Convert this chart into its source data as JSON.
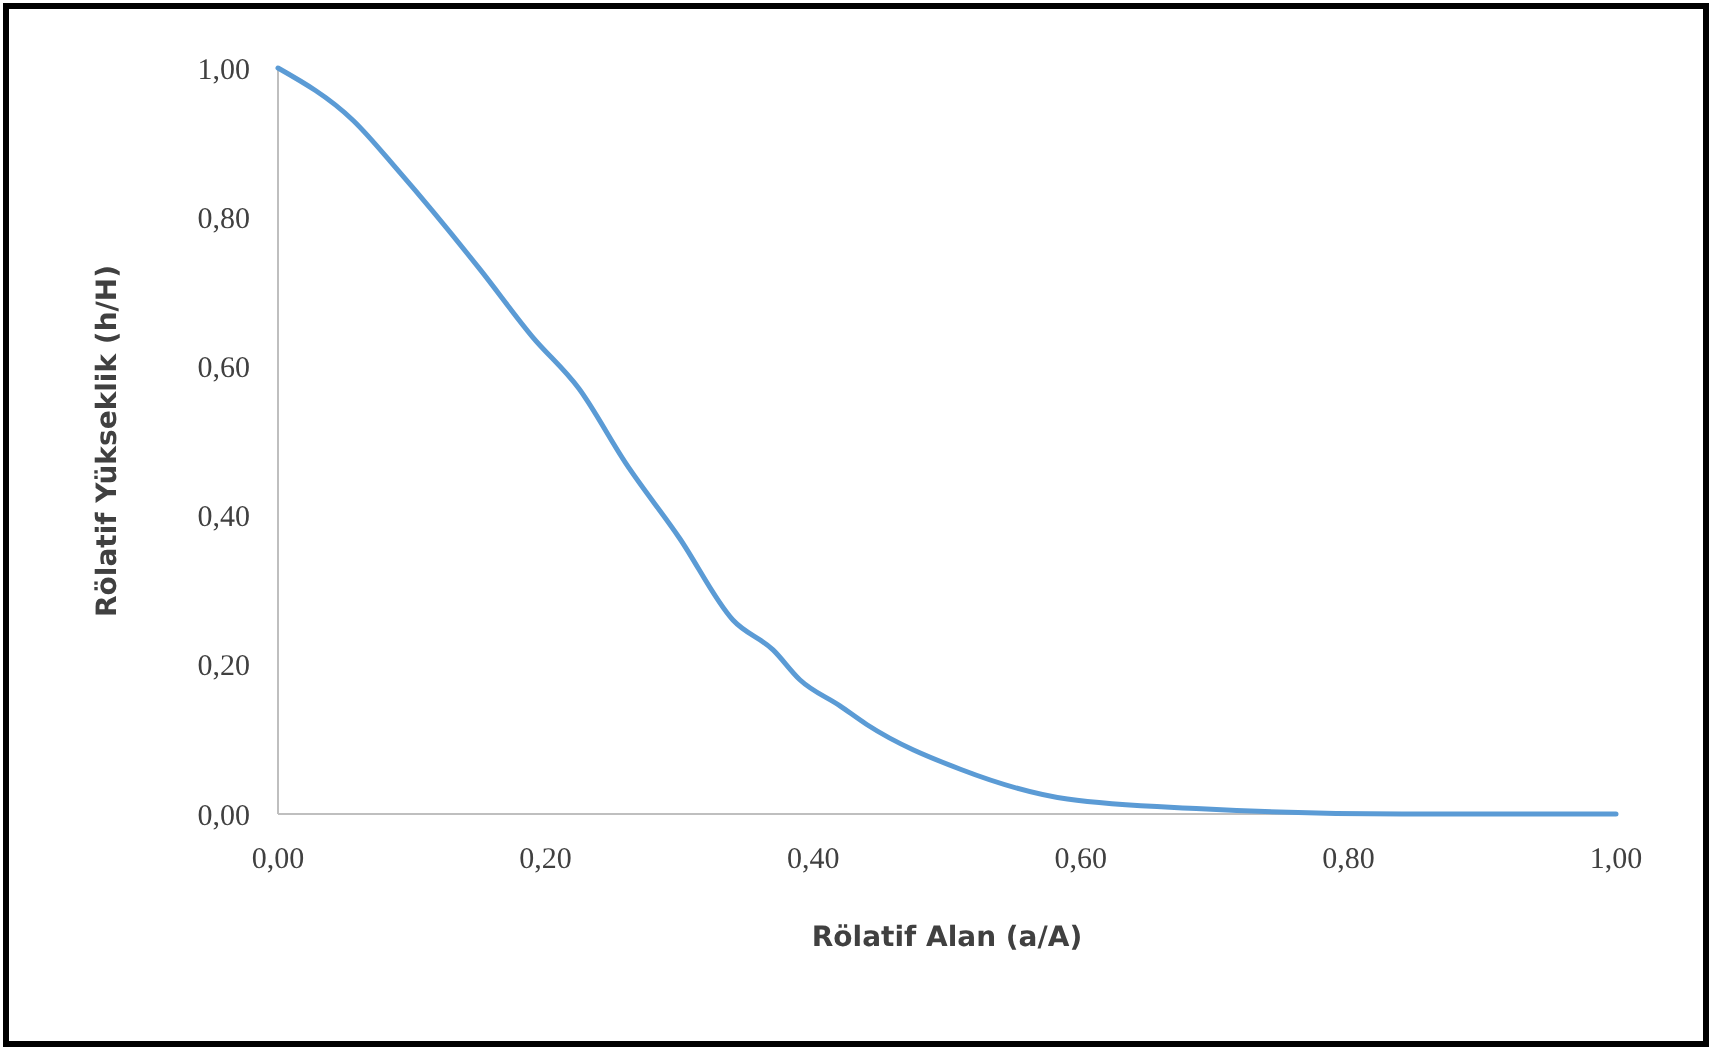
{
  "chart_data": {
    "type": "line",
    "xlabel": "Rölatif Alan (a/A)",
    "ylabel": "Rölatif Yükseklik (h/H)",
    "x": [
      0,
      0.056,
      0.091,
      0.151,
      0.19,
      0.225,
      0.26,
      0.3,
      0.34,
      0.37,
      0.39,
      0.42,
      0.44,
      0.51,
      0.59,
      0.69,
      0.84,
      1.0
    ],
    "series": [
      {
        "color": "#5b9bd5",
        "values": [
          1.0,
          0.93,
          0.86,
          0.73,
          0.64,
          0.57,
          0.47,
          0.37,
          0.26,
          0.22,
          0.18,
          0.145,
          0.12,
          0.06,
          0.02,
          0.007,
          0.0,
          0.0
        ]
      }
    ],
    "xlim": [
      0,
      1
    ],
    "ylim": [
      0,
      1
    ],
    "xticks": [
      {
        "value": 0,
        "label": "0,00"
      },
      {
        "value": 0.2,
        "label": "0,20"
      },
      {
        "value": 0.4,
        "label": "0,40"
      },
      {
        "value": 0.6,
        "label": "0,60"
      },
      {
        "value": 0.8,
        "label": "0,80"
      },
      {
        "value": 1,
        "label": "1,00"
      }
    ],
    "yticks": [
      {
        "value": 0,
        "label": "0,00"
      },
      {
        "value": 0.2,
        "label": "0,20"
      },
      {
        "value": 0.4,
        "label": "0,40"
      },
      {
        "value": 0.6,
        "label": "0,60"
      },
      {
        "value": 0.8,
        "label": "0,80"
      },
      {
        "value": 1,
        "label": "1,00"
      }
    ],
    "grid": false
  }
}
